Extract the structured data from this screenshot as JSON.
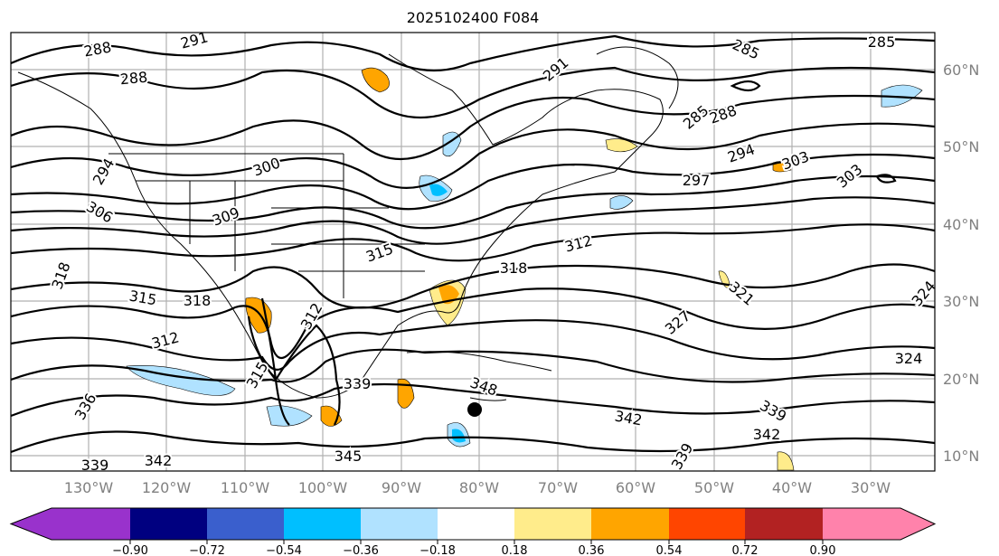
{
  "title": "2025102400 F084",
  "lon_labels": [
    "130°W",
    "120°W",
    "110°W",
    "100°W",
    "90°W",
    "80°W",
    "70°W",
    "60°W",
    "50°W",
    "40°W",
    "30°W"
  ],
  "lat_labels": [
    "60°N",
    "50°N",
    "40°N",
    "30°N",
    "20°N",
    "10°N"
  ],
  "contour_labels": [
    "288",
    "291",
    "288",
    "285",
    "285",
    "291",
    "285",
    "288",
    "294",
    "297",
    "303",
    "303",
    "294",
    "300",
    "306",
    "309",
    "315",
    "318",
    "318",
    "315",
    "312",
    "318",
    "312",
    "321",
    "324",
    "327",
    "324",
    "312",
    "315",
    "336",
    "339",
    "339",
    "342",
    "342",
    "342",
    "345",
    "339",
    "339",
    "348"
  ],
  "colorbar": {
    "ticks": [
      "−0.90",
      "−0.72",
      "−0.54",
      "−0.36",
      "−0.18",
      "0.18",
      "0.36",
      "0.54",
      "0.72",
      "0.90"
    ],
    "colors": [
      "#9932CC",
      "#000080",
      "#3A5FCD",
      "#00BFFF",
      "#B0E2FF",
      "#FFFFFF",
      "#FFEC8B",
      "#FFA500",
      "#FF4500",
      "#B22222",
      "#FF82AB"
    ]
  }
}
